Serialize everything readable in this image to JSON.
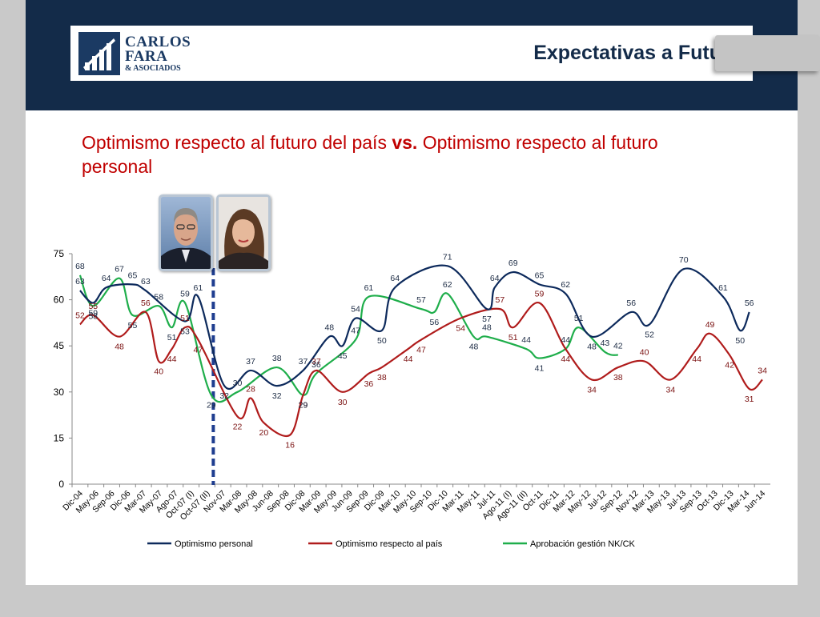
{
  "header": {
    "logo_line1": "CARLOS",
    "logo_line2": "FARA",
    "logo_line3": "& ASOCIADOS",
    "title": "Expectativas a Futuro"
  },
  "subtitle": {
    "part1": "Optimismo respecto al futuro del país ",
    "vs": "vs.",
    "part2": " Optimismo respecto al futuro personal"
  },
  "photos": [
    {
      "icon": "man-portrait-photo"
    },
    {
      "icon": "woman-portrait-photo"
    }
  ],
  "colors": {
    "header_band": "#132b49",
    "personal": "#0d2a5c",
    "pais": "#b01c1c",
    "aprobacion": "#1fae4b",
    "divider": "#1e3d8f",
    "subtitle": "#c00000"
  },
  "chart_data": {
    "type": "line",
    "ylim": [
      0,
      75
    ],
    "yticks": [
      0,
      15,
      30,
      45,
      60,
      75
    ],
    "categories": [
      "Dic-04",
      "May-06",
      "Sep-06",
      "Dic-06",
      "Mar-07",
      "May-07",
      "Ago-07",
      "Oct-07 (I)",
      "Oct-07 (II)",
      "Nov-07",
      "Mar-08",
      "May-08",
      "Jun-08",
      "Sep-08",
      "Dic-08",
      "Mar-09",
      "May-09",
      "Jun-09",
      "Sep-09",
      "Dic-09",
      "Mar-10",
      "May-10",
      "Sep-10",
      "Dic-10",
      "Mar-11",
      "May-11",
      "Jul-11",
      "Ago-11 (I)",
      "Ago-11 (II)",
      "Oct-11",
      "Dic-11",
      "Mar-12",
      "May-12",
      "Jul-12",
      "Sep-12",
      "Nov-12",
      "Mar-13",
      "May-13",
      "Jul-13",
      "Sep-13",
      "Oct-13",
      "Dic-13",
      "Mar-14",
      "Jun-14"
    ],
    "divider_after": "Oct-07 (II)",
    "series": [
      {
        "name": "Optimismo personal",
        "color": "#0d2a5c",
        "points": [
          [
            0,
            63
          ],
          [
            1,
            59
          ],
          [
            2,
            64
          ],
          [
            4,
            65
          ],
          [
            5,
            63
          ],
          [
            8,
            53
          ],
          [
            9,
            61
          ],
          [
            11,
            32
          ],
          [
            13,
            37
          ],
          [
            15,
            32
          ],
          [
            17,
            37
          ],
          [
            19,
            48
          ],
          [
            20,
            45
          ],
          [
            21,
            54
          ],
          [
            23,
            50
          ],
          [
            24,
            64
          ],
          [
            28,
            71
          ],
          [
            31,
            57
          ],
          [
            31.6,
            64
          ],
          [
            33,
            69
          ],
          [
            35,
            65
          ],
          [
            37,
            62
          ],
          [
            39,
            48
          ],
          [
            42,
            56
          ],
          [
            43.4,
            52
          ],
          [
            46,
            70
          ],
          [
            49,
            61
          ],
          [
            50.3,
            50
          ],
          [
            51,
            56
          ]
        ],
        "labels": [
          [
            0,
            63
          ],
          [
            1,
            59
          ],
          [
            2,
            64
          ],
          [
            4,
            65
          ],
          [
            5,
            63
          ],
          [
            8,
            53
          ],
          [
            9,
            61
          ],
          [
            11,
            32
          ],
          [
            13,
            37
          ],
          [
            15,
            32
          ],
          [
            17,
            37
          ],
          [
            19,
            48
          ],
          [
            20,
            45
          ],
          [
            21,
            54
          ],
          [
            23,
            50
          ],
          [
            24,
            64
          ],
          [
            28,
            71
          ],
          [
            31,
            57
          ],
          [
            31.6,
            64
          ],
          [
            33,
            69
          ],
          [
            35,
            65
          ],
          [
            37,
            62
          ],
          [
            39,
            48
          ],
          [
            42,
            56
          ],
          [
            43.4,
            52
          ],
          [
            46,
            70
          ],
          [
            49,
            61
          ],
          [
            50.3,
            50
          ],
          [
            51,
            56
          ]
        ]
      },
      {
        "name": "Optimismo respecto al país",
        "color": "#b01c1c",
        "points": [
          [
            0,
            52
          ],
          [
            1,
            55
          ],
          [
            3,
            48
          ],
          [
            5,
            56
          ],
          [
            6,
            40
          ],
          [
            7,
            44
          ],
          [
            8,
            51
          ],
          [
            9,
            47
          ],
          [
            12,
            22
          ],
          [
            13,
            28
          ],
          [
            14,
            20
          ],
          [
            16,
            16
          ],
          [
            17,
            29
          ],
          [
            18,
            37
          ],
          [
            20,
            30
          ],
          [
            22,
            36
          ],
          [
            23,
            38
          ],
          [
            25,
            44
          ],
          [
            26,
            47
          ],
          [
            29,
            54
          ],
          [
            32,
            57
          ],
          [
            33,
            51
          ],
          [
            35,
            59
          ],
          [
            37,
            44
          ],
          [
            39,
            34
          ],
          [
            41,
            38
          ],
          [
            43,
            40
          ],
          [
            45,
            34
          ],
          [
            47,
            44
          ],
          [
            48,
            49
          ],
          [
            49.5,
            42
          ],
          [
            51,
            31
          ],
          [
            52,
            34
          ]
        ],
        "labels": [
          [
            0,
            52
          ],
          [
            1,
            55
          ],
          [
            3,
            48
          ],
          [
            5,
            56
          ],
          [
            6,
            40
          ],
          [
            7,
            44
          ],
          [
            8,
            51
          ],
          [
            9,
            47
          ],
          [
            12,
            22
          ],
          [
            13,
            28
          ],
          [
            14,
            20
          ],
          [
            16,
            16
          ],
          [
            17,
            29
          ],
          [
            18,
            37
          ],
          [
            20,
            30
          ],
          [
            22,
            36
          ],
          [
            23,
            38
          ],
          [
            25,
            44
          ],
          [
            26,
            47
          ],
          [
            29,
            54
          ],
          [
            32,
            57
          ],
          [
            33,
            51
          ],
          [
            35,
            59
          ],
          [
            37,
            44
          ],
          [
            39,
            34
          ],
          [
            41,
            38
          ],
          [
            43,
            40
          ],
          [
            45,
            34
          ],
          [
            47,
            44
          ],
          [
            48,
            49
          ],
          [
            49.5,
            42
          ],
          [
            51,
            31
          ],
          [
            52,
            34
          ]
        ]
      },
      {
        "name": "Aprobación gestión NK/CK",
        "color": "#1fae4b",
        "points": [
          [
            0,
            68
          ],
          [
            1,
            58
          ],
          [
            3,
            67
          ],
          [
            4,
            55
          ],
          [
            6,
            58
          ],
          [
            7,
            51
          ],
          [
            8,
            59
          ],
          [
            10,
            29
          ],
          [
            12,
            30
          ],
          [
            15,
            38
          ],
          [
            17,
            29
          ],
          [
            18,
            36
          ],
          [
            21,
            47
          ],
          [
            22,
            61
          ],
          [
            26,
            57
          ],
          [
            27,
            56
          ],
          [
            28,
            62
          ],
          [
            30,
            48
          ],
          [
            31,
            48
          ],
          [
            34,
            44
          ],
          [
            35,
            41
          ],
          [
            37,
            44
          ],
          [
            38,
            51
          ],
          [
            40,
            43
          ],
          [
            41,
            42
          ]
        ],
        "labels": [
          [
            0,
            68
          ],
          [
            1,
            58
          ],
          [
            3,
            67
          ],
          [
            4,
            55
          ],
          [
            6,
            58
          ],
          [
            7,
            51
          ],
          [
            8,
            59
          ],
          [
            10,
            29
          ],
          [
            12,
            30
          ],
          [
            15,
            38
          ],
          [
            17,
            29
          ],
          [
            18,
            36
          ],
          [
            21,
            47
          ],
          [
            22,
            61
          ],
          [
            26,
            57
          ],
          [
            27,
            56
          ],
          [
            28,
            62
          ],
          [
            30,
            48
          ],
          [
            31,
            48
          ],
          [
            34,
            44
          ],
          [
            35,
            41
          ],
          [
            37,
            44
          ],
          [
            38,
            51
          ],
          [
            40,
            43
          ],
          [
            41,
            42
          ]
        ]
      }
    ],
    "legend": [
      "Optimismo personal",
      "Optimismo respecto al país",
      "Aprobación gestión NK/CK"
    ]
  }
}
